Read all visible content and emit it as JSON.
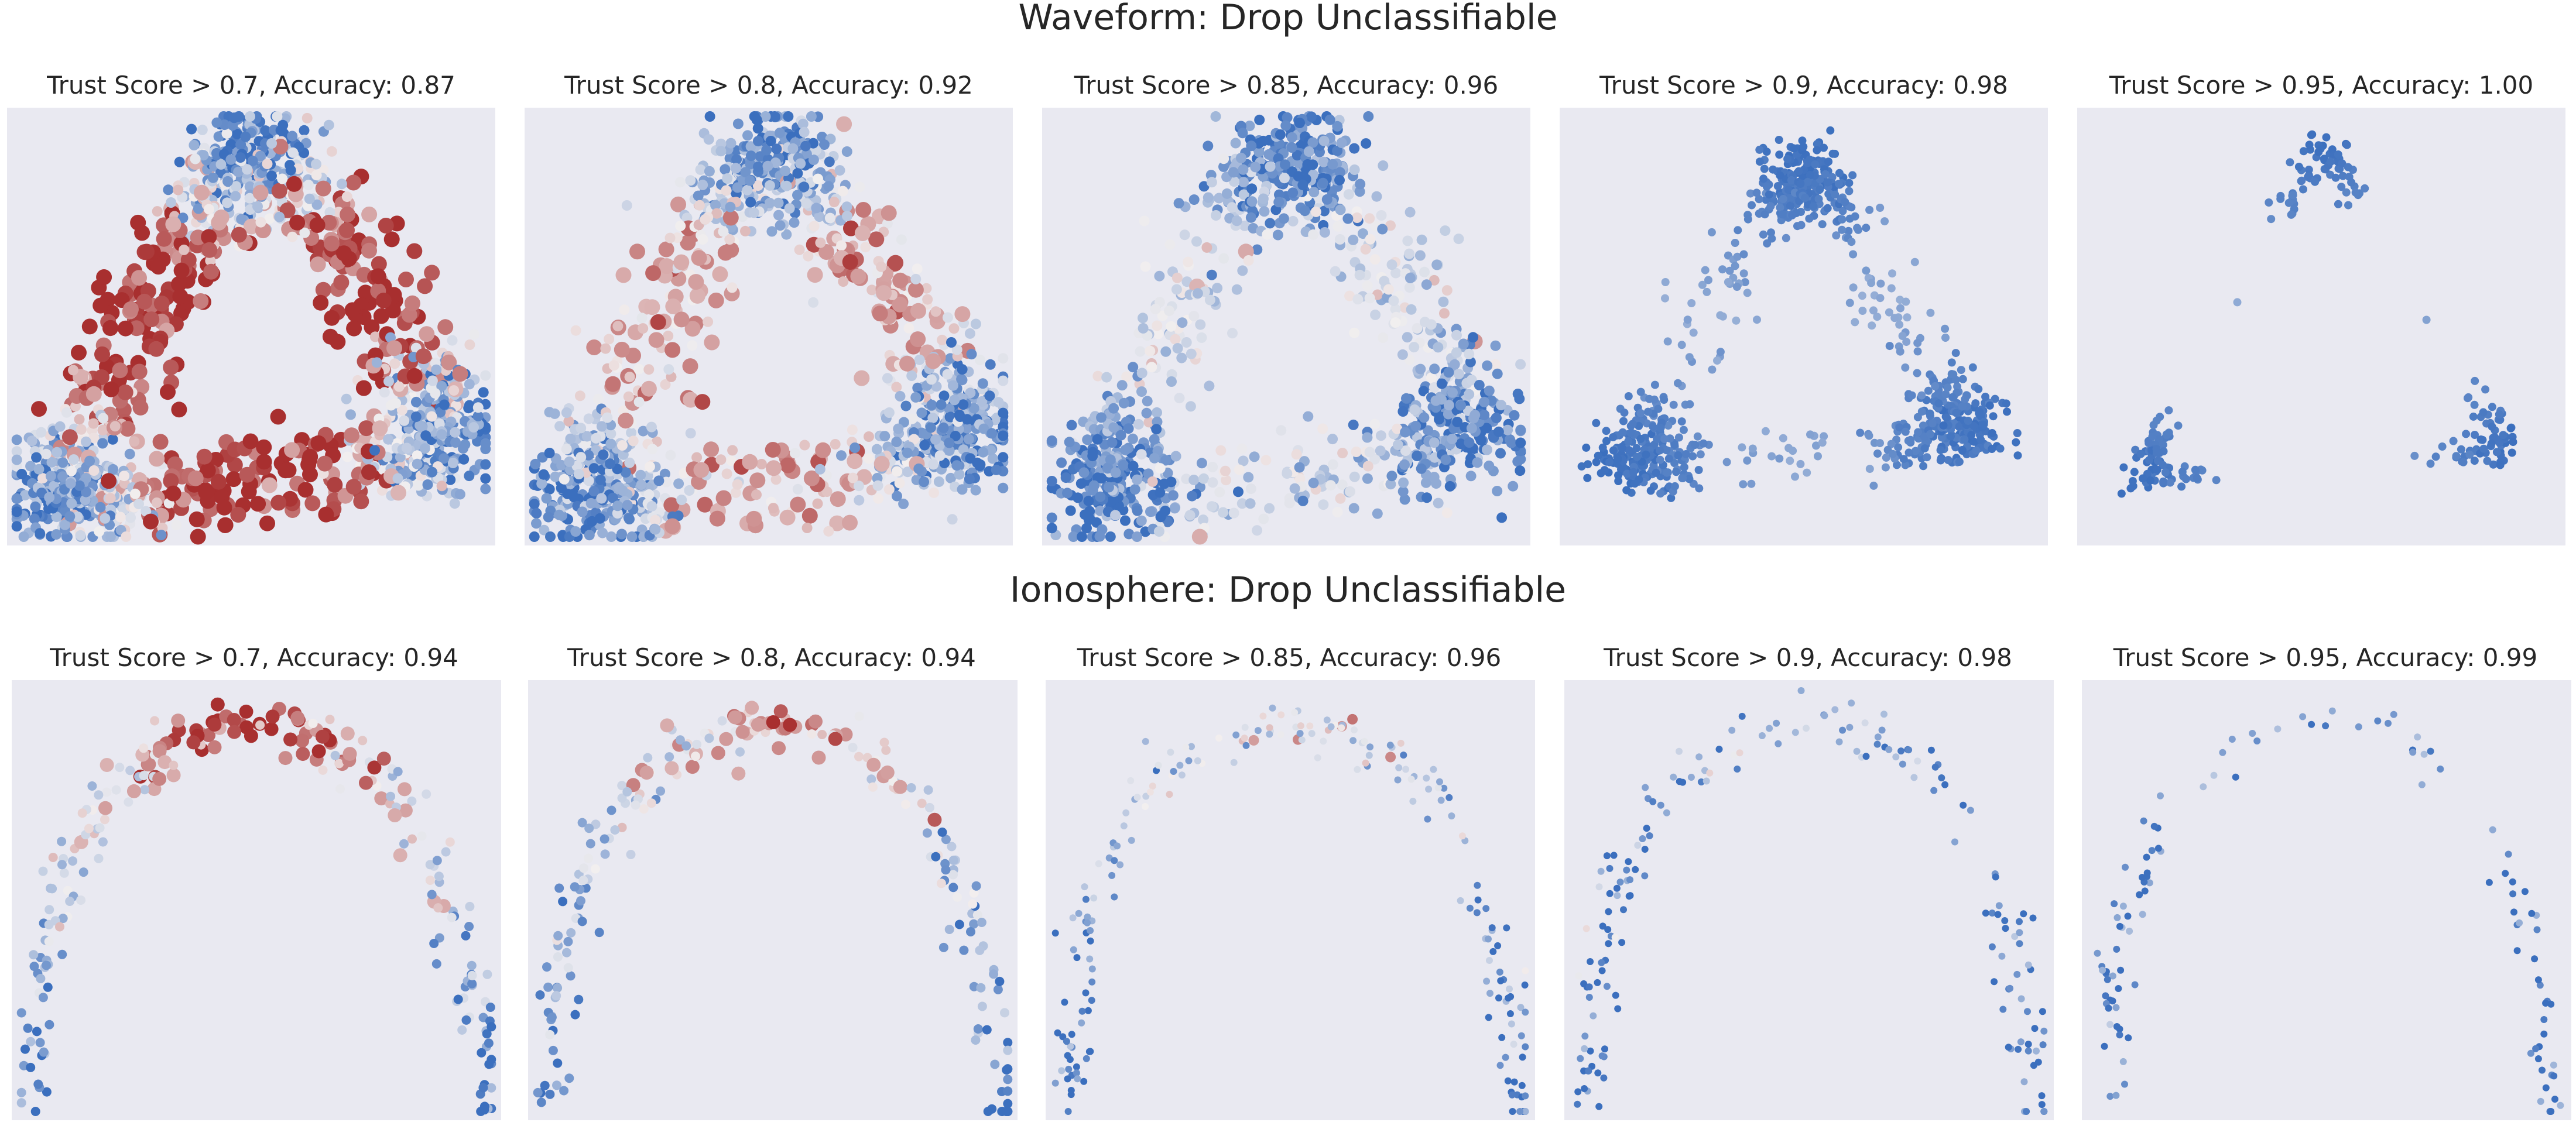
{
  "figure": {
    "rows": [
      {
        "title": "Waveform: Drop Unclassifiable"
      },
      {
        "title": "Ionosphere: Drop Unclassifiable"
      }
    ]
  },
  "colors": {
    "panel_bg": "#e9e9f1",
    "blue": "#3b6fbe",
    "white": "#f2efef",
    "red": "#a82f2f",
    "suptitle_text": "#262626"
  },
  "chart_data": [
    {
      "type": "scatter",
      "row": 0,
      "title": "Trust Score > 0.7, Accuracy: 0.87",
      "xlabel": "",
      "ylabel": "",
      "grid": false,
      "point_count": 1500,
      "color_range": [
        -1,
        1
      ],
      "points": [
        {
          "x": 0.1,
          "y": 0.1,
          "c": -1.0
        },
        {
          "x": 0.5,
          "y": 0.92,
          "c": -1.0
        },
        {
          "x": 0.92,
          "y": 0.25,
          "c": -0.9
        },
        {
          "x": 0.2,
          "y": 0.55,
          "c": 0.7
        },
        {
          "x": 0.8,
          "y": 0.55,
          "c": 0.6
        },
        {
          "x": 0.5,
          "y": 0.05,
          "c": 0.6
        }
      ]
    },
    {
      "type": "scatter",
      "row": 0,
      "title": "Trust Score > 0.8, Accuracy: 0.92",
      "xlabel": "",
      "ylabel": "",
      "grid": false,
      "point_count": 1300,
      "color_range": [
        -1,
        1
      ],
      "points": [
        {
          "x": 0.1,
          "y": 0.1,
          "c": -1.0
        },
        {
          "x": 0.5,
          "y": 0.92,
          "c": -1.0
        },
        {
          "x": 0.92,
          "y": 0.25,
          "c": -0.9
        },
        {
          "x": 0.25,
          "y": 0.55,
          "c": 0.1
        },
        {
          "x": 0.75,
          "y": 0.55,
          "c": 0.1
        }
      ]
    },
    {
      "type": "scatter",
      "row": 0,
      "title": "Trust Score > 0.85, Accuracy: 0.96",
      "xlabel": "",
      "ylabel": "",
      "grid": false,
      "point_count": 1100,
      "color_range": [
        -1,
        1
      ],
      "points": [
        {
          "x": 0.1,
          "y": 0.12,
          "c": -1.0
        },
        {
          "x": 0.5,
          "y": 0.92,
          "c": -1.0
        },
        {
          "x": 0.9,
          "y": 0.25,
          "c": -0.9
        },
        {
          "x": 0.3,
          "y": 0.55,
          "c": -0.4
        },
        {
          "x": 0.7,
          "y": 0.55,
          "c": -0.4
        }
      ]
    },
    {
      "type": "scatter",
      "row": 0,
      "title": "Trust Score > 0.9, Accuracy: 0.98",
      "xlabel": "",
      "ylabel": "",
      "grid": false,
      "point_count": 850,
      "color_range": [
        -1,
        1
      ],
      "points": [
        {
          "x": 0.13,
          "y": 0.18,
          "c": -1.0
        },
        {
          "x": 0.5,
          "y": 0.88,
          "c": -1.0
        },
        {
          "x": 0.85,
          "y": 0.25,
          "c": -0.9
        }
      ]
    },
    {
      "type": "scatter",
      "row": 0,
      "title": "Trust Score > 0.95, Accuracy: 1.00",
      "xlabel": "",
      "ylabel": "",
      "grid": false,
      "point_count": 220,
      "color_range": [
        -1,
        1
      ],
      "points": [
        {
          "x": 0.12,
          "y": 0.15,
          "c": -1.0
        },
        {
          "x": 0.5,
          "y": 0.92,
          "c": -1.0
        },
        {
          "x": 0.89,
          "y": 0.22,
          "c": -1.0
        }
      ]
    },
    {
      "type": "scatter",
      "row": 1,
      "title": "Trust Score > 0.7, Accuracy: 0.94",
      "xlabel": "",
      "ylabel": "",
      "grid": false,
      "point_count": 240,
      "color_range": [
        -1,
        1
      ],
      "points": [
        {
          "x": 0.05,
          "y": 0.33,
          "c": -1.0
        },
        {
          "x": 0.3,
          "y": 0.78,
          "c": 0.8
        },
        {
          "x": 0.62,
          "y": 0.82,
          "c": 0.9
        },
        {
          "x": 0.96,
          "y": 0.05,
          "c": -1.0
        }
      ]
    },
    {
      "type": "scatter",
      "row": 1,
      "title": "Trust Score > 0.8, Accuracy: 0.94",
      "xlabel": "",
      "ylabel": "",
      "grid": false,
      "point_count": 220,
      "color_range": [
        -1,
        1
      ],
      "points": [
        {
          "x": 0.05,
          "y": 0.33,
          "c": -1.0
        },
        {
          "x": 0.3,
          "y": 0.78,
          "c": 0.5
        },
        {
          "x": 0.68,
          "y": 0.8,
          "c": 0.5
        },
        {
          "x": 0.96,
          "y": 0.05,
          "c": -1.0
        }
      ]
    },
    {
      "type": "scatter",
      "row": 1,
      "title": "Trust Score > 0.85, Accuracy: 0.96",
      "xlabel": "",
      "ylabel": "",
      "grid": false,
      "point_count": 200,
      "color_range": [
        -1,
        1
      ],
      "points": [
        {
          "x": 0.05,
          "y": 0.33,
          "c": -1.0
        },
        {
          "x": 0.45,
          "y": 0.85,
          "c": 0.0
        },
        {
          "x": 0.96,
          "y": 0.05,
          "c": -1.0
        }
      ]
    },
    {
      "type": "scatter",
      "row": 1,
      "title": "Trust Score > 0.9, Accuracy: 0.98",
      "xlabel": "",
      "ylabel": "",
      "grid": false,
      "point_count": 170,
      "color_range": [
        -1,
        1
      ],
      "points": [
        {
          "x": 0.05,
          "y": 0.33,
          "c": -1.0
        },
        {
          "x": 0.3,
          "y": 0.6,
          "c": -0.6
        },
        {
          "x": 0.96,
          "y": 0.05,
          "c": -1.0
        }
      ]
    },
    {
      "type": "scatter",
      "row": 1,
      "title": "Trust Score > 0.95, Accuracy: 0.99",
      "xlabel": "",
      "ylabel": "",
      "grid": false,
      "point_count": 110,
      "color_range": [
        -1,
        1
      ],
      "points": [
        {
          "x": 0.05,
          "y": 0.33,
          "c": -1.0
        },
        {
          "x": 0.25,
          "y": 0.62,
          "c": -0.9
        },
        {
          "x": 0.96,
          "y": 0.05,
          "c": -1.0
        }
      ]
    }
  ]
}
